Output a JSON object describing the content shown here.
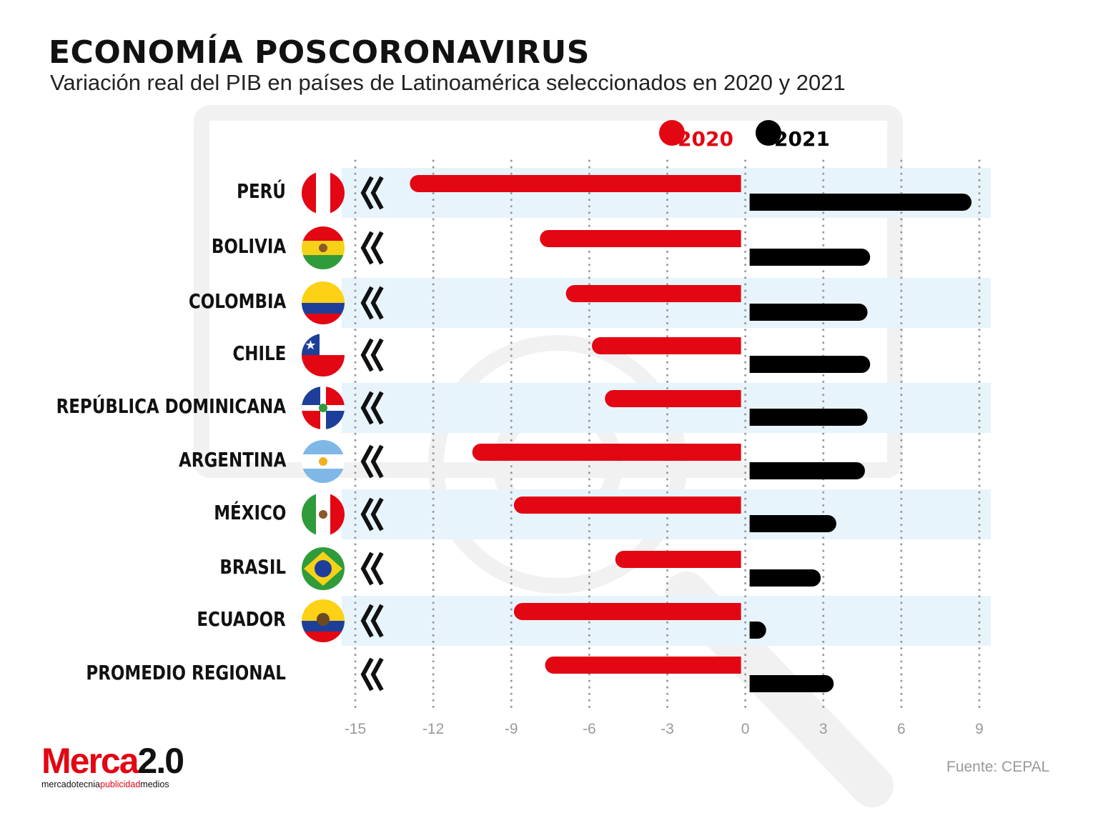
{
  "header": {
    "title": "ECONOMÍA POSCORONAVIRUS",
    "subtitle": "Variación real del PIB en países de Latinoamérica seleccionados en 2020 y 2021"
  },
  "source": "Fuente: CEPAL",
  "logo": {
    "brand_red": "Merca",
    "brand_black": "2.0",
    "tagline_1": "mercadotecnia",
    "tagline_2": "publicidad",
    "tagline_3": "medios"
  },
  "colors": {
    "series_2020": "#e30613",
    "series_2021": "#000000",
    "band": "#e8f4fb",
    "grid": "#9a9a9a"
  },
  "chart_data": {
    "type": "bar",
    "orientation": "horizontal",
    "title": "ECONOMÍA POSCORONAVIRUS",
    "subtitle": "Variación real del PIB en países de Latinoamérica seleccionados en 2020 y 2021",
    "categories": [
      "PERÚ",
      "BOLIVIA",
      "COLOMBIA",
      "CHILE",
      "REPÚBLICA DOMINICANA",
      "ARGENTINA",
      "MÉXICO",
      "BRASIL",
      "ECUADOR",
      "PROMEDIO REGIONAL"
    ],
    "series": [
      {
        "name": "2020",
        "color": "#e30613",
        "values": [
          -12.9,
          -7.9,
          -6.9,
          -5.9,
          -5.4,
          -10.5,
          -8.9,
          -5.0,
          -8.9,
          -7.7
        ]
      },
      {
        "name": "2021",
        "color": "#000000",
        "values": [
          8.7,
          4.8,
          4.7,
          4.8,
          4.7,
          4.6,
          3.5,
          2.9,
          0.8,
          3.4
        ]
      }
    ],
    "xlim": [
      -15,
      9
    ],
    "xticks": [
      "-15",
      "-12",
      "-9",
      "-6",
      "-3",
      "0",
      "3",
      "6",
      "9"
    ],
    "grid": true,
    "legend": "top-right"
  }
}
